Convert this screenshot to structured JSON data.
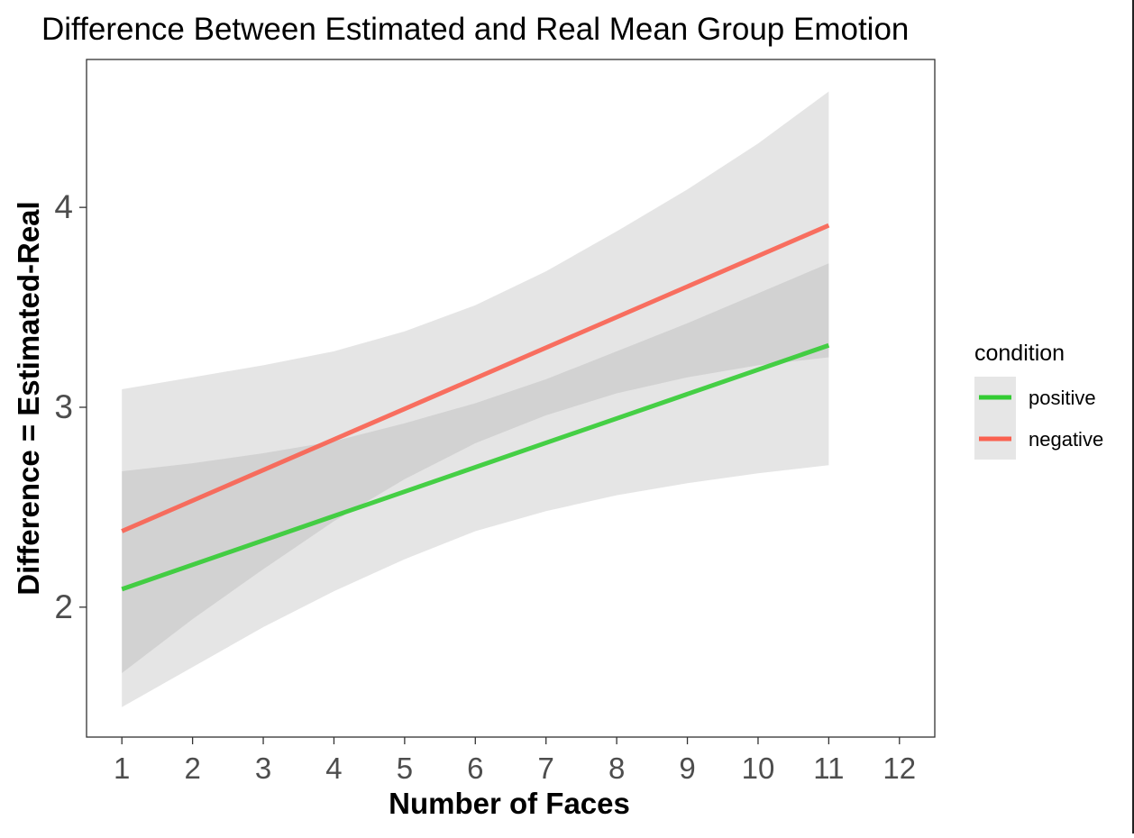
{
  "chart_data": {
    "type": "line",
    "title": "Difference Between Estimated and Real Mean Group Emotion",
    "xlabel": "Number of Faces",
    "ylabel": "Difference = Estimated-Real",
    "x_ticks": [
      1,
      2,
      3,
      4,
      5,
      6,
      7,
      8,
      9,
      10,
      11,
      12
    ],
    "y_ticks": [
      2,
      3,
      4
    ],
    "xlim": [
      0.5,
      12.5
    ],
    "ylim": [
      1.35,
      4.74
    ],
    "grid": false,
    "legend": {
      "title": "condition",
      "placement": "right"
    },
    "series": [
      {
        "name": "positive",
        "color": "#33cc33",
        "x": [
          1,
          11
        ],
        "y": [
          2.09,
          3.31
        ],
        "ci_x": [
          1,
          2,
          3,
          4,
          5,
          6,
          7,
          8,
          9,
          10,
          11
        ],
        "ci_lower": [
          1.5,
          1.7,
          1.9,
          2.08,
          2.24,
          2.38,
          2.48,
          2.56,
          2.62,
          2.67,
          2.71
        ],
        "ci_upper": [
          2.68,
          2.72,
          2.77,
          2.83,
          2.92,
          3.02,
          3.14,
          3.28,
          3.42,
          3.57,
          3.72
        ]
      },
      {
        "name": "negative",
        "color": "#fa6150",
        "x": [
          1,
          11
        ],
        "y": [
          2.38,
          3.91
        ],
        "ci_x": [
          1,
          2,
          3,
          4,
          5,
          6,
          7,
          8,
          9,
          10,
          11
        ],
        "ci_lower": [
          1.67,
          1.94,
          2.19,
          2.43,
          2.64,
          2.82,
          2.96,
          3.07,
          3.15,
          3.21,
          3.25
        ],
        "ci_upper": [
          3.09,
          3.15,
          3.21,
          3.28,
          3.38,
          3.51,
          3.68,
          3.88,
          4.09,
          4.32,
          4.58
        ]
      }
    ]
  }
}
